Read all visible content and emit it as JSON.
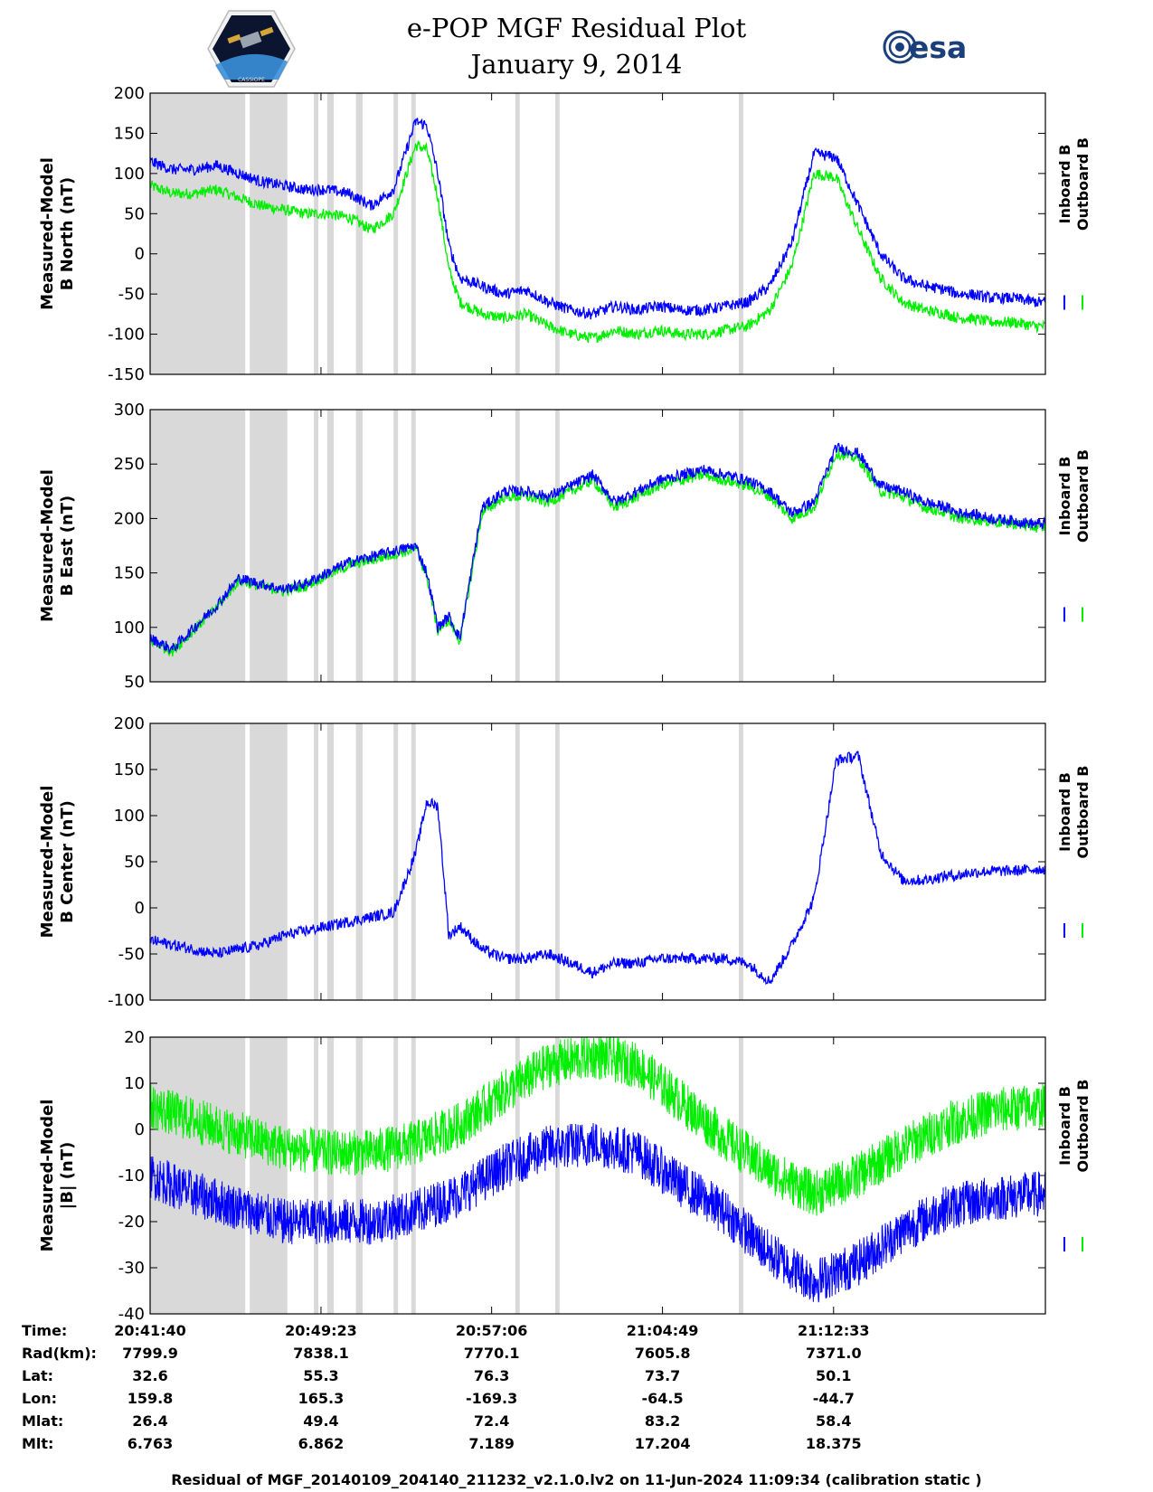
{
  "header": {
    "title_line1": "e-POP MGF Residual Plot",
    "title_line2": "January 9, 2014",
    "esa_logo_text": "esa",
    "mission_logo_text": "CASSIOPE"
  },
  "colors": {
    "inboard": "#0000ff",
    "outboard": "#00ee00",
    "shade": "#d9d9d9"
  },
  "legend": {
    "inboard": "Inboard B",
    "outboard": "Outboard B"
  },
  "chart_data": [
    {
      "type": "line",
      "ylabel_line1": "Measured-Model",
      "ylabel_line2": "B North (nT)",
      "ylim": [
        -150,
        200
      ],
      "yticks": [
        "200",
        "150",
        "100",
        "50",
        "0",
        "-50",
        "-100",
        "-150"
      ],
      "series": [
        {
          "name": "Inboard B",
          "x_min": [
            0,
            1,
            2,
            3,
            4,
            5,
            6,
            7,
            8,
            9,
            10,
            11,
            12,
            12.5,
            13,
            13.5,
            14,
            15,
            16,
            17,
            18,
            19,
            20,
            21,
            22,
            23,
            24,
            25,
            26,
            27,
            28,
            29,
            30,
            31,
            32,
            33,
            34,
            35,
            36,
            36.5,
            37,
            38,
            39,
            40
          ],
          "values": [
            115,
            105,
            105,
            110,
            100,
            90,
            85,
            80,
            80,
            75,
            60,
            80,
            165,
            160,
            100,
            10,
            -30,
            -40,
            -50,
            -45,
            -60,
            -70,
            -75,
            -65,
            -70,
            -65,
            -70,
            -70,
            -65,
            -60,
            -40,
            15,
            125,
            120,
            60,
            0,
            -30,
            -40,
            -45,
            -50,
            -50,
            -55,
            -55,
            -60
          ]
        },
        {
          "name": "Outboard B",
          "values": [
            85,
            75,
            75,
            80,
            70,
            60,
            55,
            50,
            50,
            45,
            30,
            50,
            135,
            130,
            70,
            -20,
            -60,
            -75,
            -80,
            -75,
            -90,
            -100,
            -105,
            -95,
            -100,
            -95,
            -100,
            -100,
            -95,
            -90,
            -70,
            -15,
            100,
            95,
            30,
            -30,
            -60,
            -70,
            -75,
            -80,
            -80,
            -85,
            -85,
            -90
          ]
        }
      ]
    },
    {
      "type": "line",
      "ylabel_line1": "Measured-Model",
      "ylabel_line2": "B East (nT)",
      "ylim": [
        50,
        300
      ],
      "yticks": [
        "300",
        "250",
        "200",
        "150",
        "100",
        "50"
      ],
      "series": [
        {
          "name": "Inboard B",
          "x_min": [
            0,
            1,
            2,
            3,
            4,
            5,
            6,
            7,
            8,
            9,
            10,
            11,
            12,
            12.5,
            13,
            13.5,
            14,
            15,
            16,
            17,
            18,
            19,
            20,
            21,
            22,
            23,
            24,
            25,
            26,
            27,
            28,
            29,
            30,
            31,
            32,
            33,
            34,
            35,
            36,
            36.5,
            37,
            38,
            39,
            40
          ],
          "values": [
            90,
            80,
            100,
            120,
            145,
            140,
            135,
            140,
            150,
            160,
            165,
            170,
            175,
            150,
            100,
            110,
            90,
            210,
            225,
            225,
            220,
            230,
            240,
            215,
            225,
            235,
            240,
            245,
            240,
            235,
            225,
            205,
            215,
            265,
            260,
            230,
            225,
            215,
            210,
            205,
            205,
            200,
            198,
            195
          ]
        },
        {
          "name": "Outboard B",
          "values": [
            88,
            78,
            98,
            118,
            143,
            138,
            133,
            138,
            148,
            157,
            162,
            167,
            172,
            147,
            97,
            107,
            87,
            205,
            220,
            220,
            215,
            225,
            235,
            210,
            220,
            230,
            235,
            240,
            235,
            230,
            220,
            200,
            210,
            260,
            255,
            225,
            220,
            210,
            205,
            200,
            200,
            197,
            195,
            192
          ]
        }
      ]
    },
    {
      "type": "line",
      "ylabel_line1": "Measured-Model",
      "ylabel_line2": "B Center (nT)",
      "ylim": [
        -100,
        200
      ],
      "yticks": [
        "200",
        "150",
        "100",
        "50",
        "0",
        "-50",
        "-100"
      ],
      "series": [
        {
          "name": "Inboard B",
          "x_min": [
            0,
            1,
            2,
            3,
            4,
            5,
            6,
            7,
            8,
            9,
            10,
            11,
            12,
            12.5,
            13,
            13.5,
            14,
            15,
            16,
            17,
            18,
            19,
            20,
            21,
            22,
            23,
            24,
            25,
            26,
            27,
            28,
            29,
            30,
            31,
            32,
            33,
            34,
            35,
            36,
            36.5,
            37,
            38,
            39,
            40
          ],
          "values": [
            -35,
            -40,
            -45,
            -50,
            -45,
            -40,
            -30,
            -25,
            -20,
            -15,
            -10,
            -5,
            60,
            115,
            110,
            -30,
            -20,
            -45,
            -55,
            -55,
            -50,
            -60,
            -70,
            -60,
            -60,
            -55,
            -55,
            -55,
            -55,
            -60,
            -80,
            -40,
            10,
            160,
            165,
            60,
            30,
            30,
            35,
            35,
            38,
            40,
            40,
            42
          ]
        },
        {
          "name": "Outboard B",
          "values": []
        }
      ]
    },
    {
      "type": "line",
      "ylabel_line1": "Measured-Model",
      "ylabel_line2": "|B| (nT)",
      "ylim": [
        -40,
        20
      ],
      "yticks": [
        "20",
        "10",
        "0",
        "-10",
        "-20",
        "-30",
        "-40"
      ],
      "series": [
        {
          "name": "Inboard B",
          "x_min": [
            0,
            2,
            4,
            6,
            8,
            10,
            12,
            14,
            16,
            18,
            20,
            22,
            24,
            26,
            28,
            30,
            32,
            34,
            36,
            38,
            40
          ],
          "values": [
            -10,
            -14,
            -17,
            -20,
            -20,
            -20,
            -18,
            -14,
            -8,
            -4,
            -3,
            -5,
            -12,
            -18,
            -27,
            -33,
            -29,
            -22,
            -17,
            -15,
            -14
          ]
        },
        {
          "name": "Outboard B",
          "values": [
            5,
            2,
            -1,
            -4,
            -5,
            -5,
            -3,
            1,
            8,
            14,
            16,
            14,
            6,
            -2,
            -9,
            -14,
            -10,
            -4,
            1,
            4,
            5
          ]
        }
      ]
    }
  ],
  "xaxis": {
    "ticks_min": [
      0,
      7.72,
      15.43,
      23.15,
      30.88
    ],
    "total_min": 40.45
  },
  "shaded_regions_min": [
    [
      0,
      4.3
    ],
    [
      4.5,
      6.2
    ],
    [
      7.4,
      7.6
    ],
    [
      8.0,
      8.3
    ],
    [
      9.3,
      9.6
    ],
    [
      11.0,
      11.2
    ],
    [
      11.8,
      12.0
    ],
    [
      16.5,
      16.7
    ],
    [
      18.3,
      18.5
    ],
    [
      26.6,
      26.8
    ]
  ],
  "info_table": {
    "labels": [
      "Time:",
      "Rad(km):",
      "Lat:",
      "Lon:",
      "Mlat:",
      "Mlt:"
    ],
    "columns": [
      [
        "20:41:40",
        "7799.9",
        "32.6",
        "159.8",
        "26.4",
        "6.763"
      ],
      [
        "20:49:23",
        "7838.1",
        "55.3",
        "165.3",
        "49.4",
        "6.862"
      ],
      [
        "20:57:06",
        "7770.1",
        "76.3",
        "-169.3",
        "72.4",
        "7.189"
      ],
      [
        "21:04:49",
        "7605.8",
        "73.7",
        "-64.5",
        "83.2",
        "17.204"
      ],
      [
        "21:12:33",
        "7371.0",
        "50.1",
        "-44.7",
        "58.4",
        "18.375"
      ]
    ]
  },
  "footer": "Residual of MGF_20140109_204140_211232_v2.1.0.lv2 on 11-Jun-2024 11:09:34 (calibration static )"
}
